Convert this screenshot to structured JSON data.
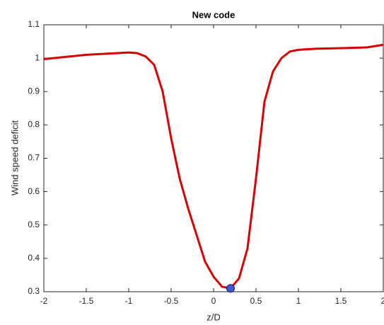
{
  "chart_data": {
    "type": "line",
    "title": "New code",
    "xlabel": "z/D",
    "ylabel": "Wind speed deficit",
    "x": [
      -2,
      -1.5,
      -1,
      -0.9,
      -0.8,
      -0.7,
      -0.6,
      -0.5,
      -0.4,
      -0.3,
      -0.2,
      -0.1,
      0,
      0.1,
      0.2,
      0.3,
      0.4,
      0.5,
      0.6,
      0.7,
      0.8,
      0.9,
      1,
      1.2,
      1.5,
      1.8,
      2
    ],
    "series": [
      {
        "color": "#d90000",
        "values": [
          0.997,
          1.01,
          1.017,
          1.015,
          1.005,
          0.98,
          0.9,
          0.76,
          0.64,
          0.55,
          0.47,
          0.39,
          0.345,
          0.315,
          0.31,
          0.34,
          0.43,
          0.64,
          0.87,
          0.96,
          1.0,
          1.02,
          1.025,
          1.028,
          1.03,
          1.032,
          1.04
        ]
      }
    ],
    "points": {
      "x": [
        0.2
      ],
      "y": [
        0.31
      ],
      "color": "#3e57d6"
    },
    "xlim": [
      -2,
      2
    ],
    "xticks": [
      -2,
      -1.5,
      -1,
      -0.5,
      0,
      0.5,
      1,
      1.5,
      2
    ],
    "ylim": [
      0.3,
      1.1
    ],
    "yticks": [
      0.3,
      0.4,
      0.5,
      0.6,
      0.7,
      0.8,
      0.9,
      1,
      1.1
    ]
  }
}
